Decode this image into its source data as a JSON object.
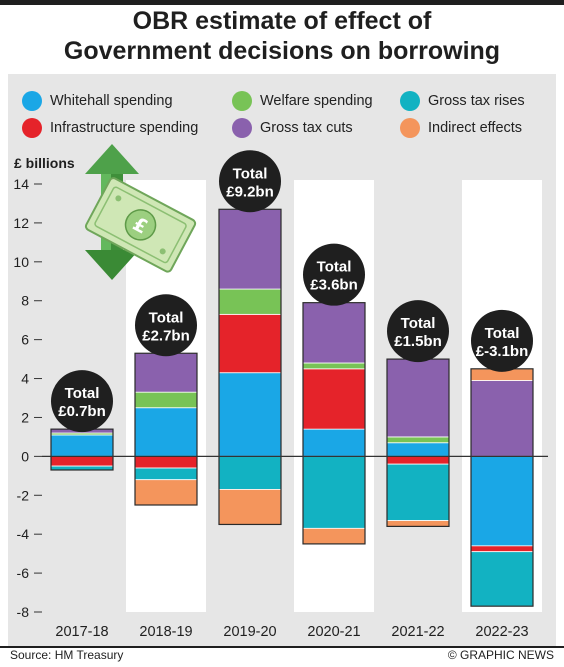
{
  "title": {
    "line1": "OBR estimate of effect of",
    "line2": "Government decisions on borrowing"
  },
  "colors": {
    "whitehall": "#1aa7e6",
    "infrastructure": "#e5232a",
    "welfare": "#78c356",
    "gross_tax_cuts": "#8a61ad",
    "gross_tax_rises": "#12b2c2",
    "indirect": "#f4955c",
    "bubble": "#1f1f1f",
    "zero_line": "#333333",
    "stripe": "#ffffff"
  },
  "icons": {
    "illustration": "banknote-with-up-down-arrow-icon"
  },
  "footer": {
    "source": "Source: HM Treasury",
    "credit": "© GRAPHIC NEWS"
  },
  "chart_data": {
    "type": "bar",
    "stacked": true,
    "title": "OBR estimate of effect of Government decisions on borrowing",
    "ylabel": "£ billions",
    "xlabel": "",
    "ylim": [
      -8,
      14
    ],
    "yticks": [
      14,
      12,
      10,
      8,
      6,
      4,
      2,
      0,
      -2,
      -4,
      -6,
      -8
    ],
    "grid": false,
    "legend_position": "top",
    "categories": [
      "2017-18",
      "2018-19",
      "2019-20",
      "2020-21",
      "2021-22",
      "2022-23"
    ],
    "series": [
      {
        "name": "Whitehall spending",
        "key": "whitehall",
        "values": [
          1.1,
          2.5,
          4.3,
          1.4,
          0.7,
          -4.6
        ]
      },
      {
        "name": "Infrastructure spending",
        "key": "infrastructure",
        "values": [
          -0.5,
          -0.6,
          3.0,
          3.1,
          -0.4,
          -0.3
        ]
      },
      {
        "name": "Welfare spending",
        "key": "welfare",
        "values": [
          0.1,
          0.8,
          1.3,
          0.3,
          0.3,
          0.0
        ]
      },
      {
        "name": "Gross tax cuts",
        "key": "gross_tax_cuts",
        "values": [
          0.2,
          2.0,
          4.1,
          3.1,
          4.0,
          3.9
        ]
      },
      {
        "name": "Gross tax rises",
        "key": "gross_tax_rises",
        "values": [
          -0.2,
          -0.6,
          -1.7,
          -3.7,
          -2.9,
          -2.8
        ]
      },
      {
        "name": "Indirect effects",
        "key": "indirect",
        "values": [
          0.0,
          -1.3,
          -1.8,
          -0.8,
          -0.3,
          0.6
        ]
      }
    ],
    "totals": [
      {
        "label1": "Total",
        "label2": "£0.7bn",
        "value": 0.7
      },
      {
        "label1": "Total",
        "label2": "£2.7bn",
        "value": 2.7
      },
      {
        "label1": "Total",
        "label2": "£9.2bn",
        "value": 9.2
      },
      {
        "label1": "Total",
        "label2": "£3.6bn",
        "value": 3.6
      },
      {
        "label1": "Total",
        "label2": "£1.5bn",
        "value": 1.5
      },
      {
        "label1": "Total",
        "label2": "£-3.1bn",
        "value": -3.1
      }
    ]
  }
}
